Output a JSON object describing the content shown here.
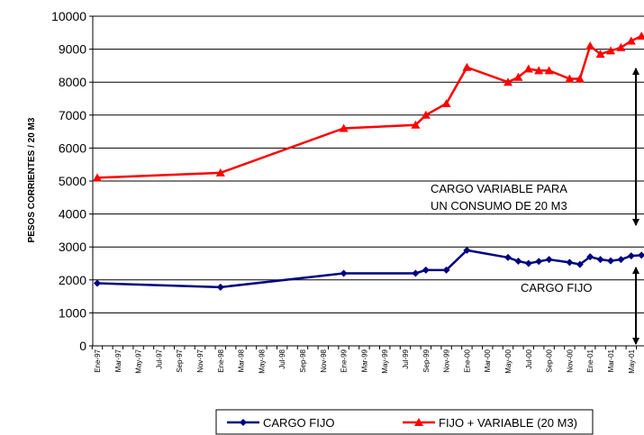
{
  "chart_data": {
    "type": "line",
    "y_axis_label": "PESOS CORRIENTES / 20 M3",
    "categories": [
      "Ene-97",
      null,
      "Mar-97",
      null,
      "May-97",
      null,
      "Jul-97",
      null,
      "Sep-97",
      null,
      "Nov-97",
      null,
      "Ene-98",
      null,
      "Mar-98",
      null,
      "May-98",
      null,
      "Jul-98",
      null,
      "Sep-98",
      null,
      "Nov-98",
      null,
      "Ene-99",
      null,
      "Mar-99",
      null,
      "May-99",
      null,
      "Jul-99",
      null,
      "Sep-99",
      null,
      "Nov-99",
      null,
      "Ene-00",
      null,
      "Mar-00",
      null,
      "May-00",
      null,
      "Jul-00",
      null,
      "Sep-00",
      null,
      "Nov-00",
      null,
      "Ene-01",
      null,
      "Mar-01",
      null,
      "May-01",
      null
    ],
    "connect_gaps": true,
    "series": [
      {
        "name": "CARGO FIJO",
        "color": "#000080",
        "marker": "diamond",
        "values": [
          1900,
          null,
          null,
          null,
          null,
          null,
          null,
          null,
          null,
          null,
          null,
          null,
          1780,
          null,
          null,
          null,
          null,
          null,
          null,
          null,
          null,
          null,
          null,
          null,
          2200,
          null,
          null,
          null,
          null,
          null,
          null,
          2200,
          2300,
          null,
          2300,
          null,
          2900,
          null,
          null,
          null,
          2680,
          2570,
          2500,
          2560,
          2620,
          null,
          2530,
          2470,
          2700,
          2620,
          2580,
          2620,
          2730,
          2750
        ]
      },
      {
        "name": "FIJO + VARIABLE (20 M3)",
        "color": "#ff0000",
        "marker": "triangle",
        "values": [
          5100,
          null,
          null,
          null,
          null,
          null,
          null,
          null,
          null,
          null,
          null,
          null,
          5250,
          null,
          null,
          null,
          null,
          null,
          null,
          null,
          null,
          null,
          null,
          null,
          6600,
          null,
          null,
          null,
          null,
          null,
          null,
          6700,
          7000,
          null,
          7350,
          null,
          8450,
          null,
          null,
          null,
          8000,
          8150,
          8400,
          8350,
          8350,
          null,
          8100,
          8100,
          9100,
          8850,
          8950,
          9050,
          9250,
          9400
        ]
      }
    ],
    "ylim": [
      0,
      10000
    ],
    "yticks": [
      0,
      1000,
      2000,
      3000,
      4000,
      5000,
      6000,
      7000,
      8000,
      9000,
      10000
    ],
    "grid": true,
    "legend": "bottom",
    "annotations": [
      "CARGO  VARIABLE PARA",
      "UN CONSUMO DE 20 M3",
      "CARGO FIJO"
    ]
  }
}
